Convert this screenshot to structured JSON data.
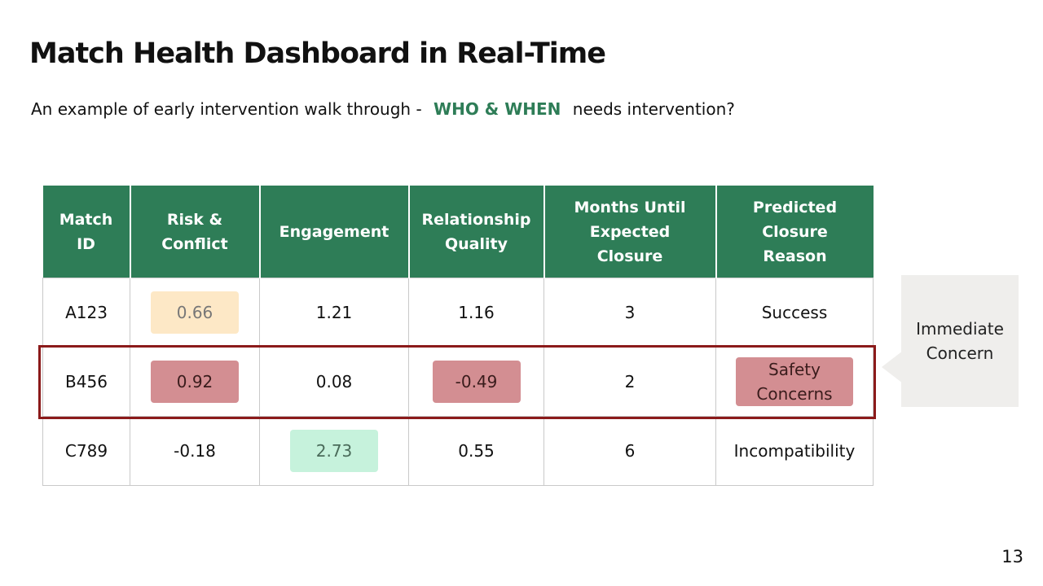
{
  "slide": {
    "title": "Match Health Dashboard in Real-Time",
    "subtitle_prefix": "An example of early intervention  walk through -",
    "subtitle_highlight": "WHO & WHEN",
    "subtitle_suffix": "needs intervention?",
    "page_number": "13"
  },
  "table": {
    "headers": [
      [
        "Match",
        "ID"
      ],
      [
        "Risk &",
        "Conflict"
      ],
      [
        "Engagement"
      ],
      [
        "Relationship",
        "Quality"
      ],
      [
        "Months Until",
        "Expected",
        "Closure"
      ],
      [
        "Predicted",
        "Closure",
        "Reason"
      ]
    ],
    "rows": [
      [
        "A123",
        "0.66",
        "1.21",
        "1.16",
        "3",
        "Success"
      ],
      [
        "B456",
        "0.92",
        "0.08",
        "-0.49",
        "2",
        "Safety Concerns"
      ],
      [
        "C789",
        "-0.18",
        "2.73",
        "0.55",
        "6",
        "Incompatibility"
      ]
    ],
    "reason_b456_lines": [
      "Safety",
      "Concerns"
    ]
  },
  "callout": {
    "line1": "Immediate",
    "line2": "Concern"
  },
  "colors": {
    "header_green": "#2e7d57",
    "highlight_text_green": "#2e7d57",
    "flag_amber": "#fde8c6",
    "flag_red": "#d38e92",
    "flag_green": "#c6f2dc",
    "row_outline": "#8b1a1a",
    "callout_bg": "#efeeec"
  }
}
